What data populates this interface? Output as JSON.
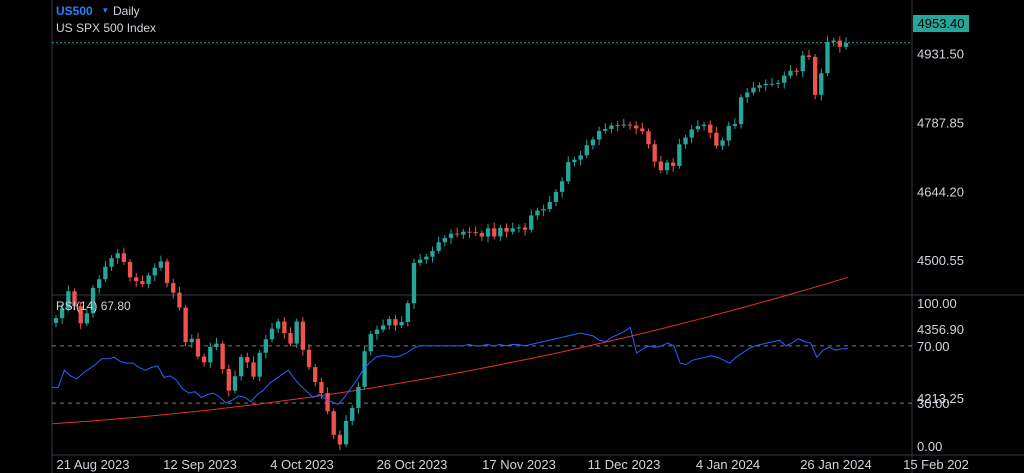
{
  "header": {
    "symbol": "US500",
    "dropdown_icon": "chevron-down-icon",
    "interval": "Daily",
    "description": "US SPX 500 Index"
  },
  "last_price": "4953.40",
  "rsi": {
    "label": "RSI(14)",
    "value": "67.80"
  },
  "colors": {
    "up": "#26a69a",
    "down": "#ef5350",
    "ma": "#e03030",
    "rsi": "#2962ff",
    "accent": "#2a7fff"
  },
  "chart_data": [
    {
      "type": "candlestick",
      "y_ticks": [
        "4787.85",
        "4644.20",
        "4500.55",
        "4356.90",
        "4213.25"
      ],
      "ylim": [
        4120,
        4980
      ],
      "x_ticks": [
        "21 Aug 2023",
        "12 Sep 2023",
        "4 Oct 2023",
        "26 Oct 2023",
        "17 Nov 2023",
        "11 Dec 2023",
        "4 Jan 2024",
        "26 Jan 2024",
        "15 Feb 202"
      ],
      "close": [
        4380,
        4400,
        4436,
        4405,
        4369,
        4390,
        4443,
        4461,
        4487,
        4505,
        4515,
        4497,
        4465,
        4457,
        4451,
        4469,
        4485,
        4498,
        4453,
        4433,
        4402,
        4330,
        4337,
        4300,
        4288,
        4320,
        4327,
        4274,
        4229,
        4259,
        4299,
        4288,
        4258,
        4308,
        4336,
        4358,
        4373,
        4349,
        4327,
        4373,
        4314,
        4278,
        4247,
        4224,
        4186,
        4137,
        4117,
        4166,
        4193,
        4237,
        4311,
        4347,
        4356,
        4365,
        4378,
        4365,
        4372,
        4411,
        4495,
        4502,
        4508,
        4520,
        4538,
        4547,
        4556,
        4554,
        4560,
        4559,
        4557,
        4550,
        4567,
        4550,
        4568,
        4560,
        4567,
        4569,
        4564,
        4594,
        4604,
        4607,
        4622,
        4643,
        4665,
        4705,
        4710,
        4719,
        4740,
        4752,
        4770,
        4774,
        4781,
        4782,
        4783,
        4781,
        4775,
        4769,
        4742,
        4706,
        4688,
        4704,
        4697,
        4742,
        4756,
        4773,
        4780,
        4783,
        4766,
        4739,
        4750,
        4780,
        4784,
        4840,
        4850,
        4860,
        4865,
        4868,
        4868,
        4870,
        4885,
        4895,
        4894,
        4927,
        4924,
        4845,
        4890,
        4955,
        4958,
        4945,
        4953
      ],
      "ma_start": 4160,
      "ma_end": 4465,
      "series": [
        {
          "name": "",
          "type": "moving-average"
        }
      ]
    },
    {
      "type": "line",
      "y_ticks": [
        "100.00",
        "70.00",
        "30.00",
        "0.00"
      ],
      "ylim": [
        0,
        100
      ],
      "levels": [
        70,
        30
      ],
      "values": [
        41,
        41,
        53,
        49,
        47,
        51,
        54,
        57,
        61,
        61,
        62,
        59,
        58,
        58,
        55,
        53,
        55,
        56,
        48,
        49,
        46,
        40,
        37,
        38,
        34,
        36,
        37,
        34,
        30,
        32,
        35,
        34,
        31,
        36,
        39,
        44,
        47,
        50,
        53,
        47,
        42,
        38,
        34,
        36,
        33,
        31,
        29,
        34,
        40,
        46,
        53,
        58,
        62,
        63,
        63,
        62,
        63,
        65,
        68,
        70,
        70,
        70,
        70,
        70,
        70,
        70,
        70,
        71,
        70,
        70,
        71,
        70,
        71,
        70,
        71,
        71,
        70,
        71,
        72,
        73,
        74,
        75,
        76,
        77,
        78,
        79,
        78,
        77,
        74,
        73,
        76,
        78,
        80,
        83,
        65,
        68,
        70,
        69,
        70,
        72,
        70,
        58,
        57,
        60,
        61,
        62,
        63,
        62,
        60,
        58,
        62,
        65,
        68,
        70,
        71,
        72,
        73,
        74,
        70,
        72,
        75,
        73,
        72,
        62,
        67,
        69,
        67,
        68,
        68
      ]
    }
  ]
}
